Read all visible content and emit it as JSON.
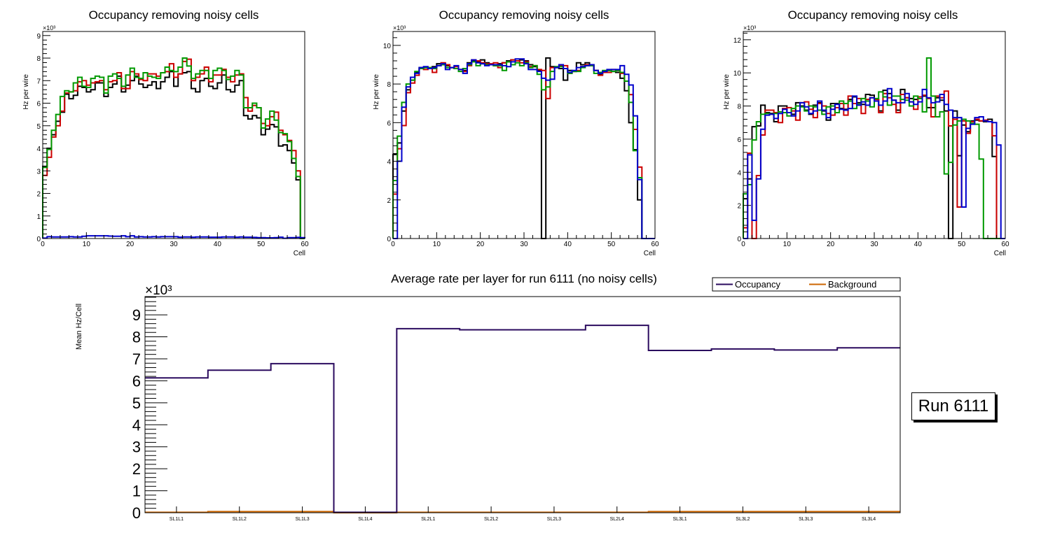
{
  "chart_data": [
    {
      "type": "line",
      "subtype": "step-histogram",
      "title": "Occupancy removing noisy cells",
      "xlabel": "Cell",
      "ylabel": "Hz per wire",
      "y_multiplier_label": "×10³",
      "xlim": [
        0,
        60
      ],
      "ylim": [
        0,
        9.18
      ],
      "xticks": [
        0,
        10,
        20,
        30,
        40,
        50,
        60
      ],
      "yticks": [
        0,
        1,
        2,
        3,
        4,
        5,
        6,
        7,
        8,
        9
      ],
      "grid": false,
      "series": [
        {
          "name": "layer-black",
          "color": "#000000",
          "values": [
            3.2,
            4.0,
            4.6,
            5.2,
            5.6,
            6.4,
            6.2,
            6.35,
            6.75,
            6.7,
            6.5,
            6.6,
            6.9,
            6.9,
            6.3,
            6.7,
            6.85,
            7.2,
            6.5,
            6.8,
            7.0,
            7.2,
            6.85,
            6.7,
            6.8,
            6.95,
            6.65,
            6.95,
            7.15,
            7.4,
            6.75,
            7.3,
            7.35,
            7.4,
            6.65,
            6.5,
            7.0,
            7.1,
            6.75,
            6.65,
            6.9,
            7.25,
            6.6,
            6.5,
            6.8,
            7.0,
            5.45,
            5.3,
            5.45,
            5.35,
            4.6,
            4.85,
            5.05,
            4.95,
            4.1,
            4.15,
            3.9,
            3.35,
            2.6,
            0
          ]
        },
        {
          "name": "layer-red",
          "color": "#cc0000",
          "values": [
            2.8,
            3.6,
            4.5,
            5.0,
            5.65,
            6.45,
            6.5,
            6.55,
            6.95,
            7.0,
            6.8,
            6.9,
            6.95,
            7.0,
            6.6,
            6.95,
            7.0,
            7.35,
            6.65,
            6.65,
            7.4,
            7.3,
            7.05,
            7.0,
            7.3,
            7.3,
            7.2,
            7.35,
            7.4,
            7.75,
            7.15,
            7.3,
            7.85,
            7.95,
            7.0,
            7.15,
            7.3,
            7.6,
            6.95,
            7.25,
            7.25,
            7.5,
            7.15,
            6.95,
            7.25,
            7.3,
            6.25,
            5.65,
            5.9,
            5.8,
            5.1,
            5.0,
            5.4,
            5.6,
            4.8,
            4.6,
            4.35,
            3.9,
            3.0,
            0
          ]
        },
        {
          "name": "layer-green",
          "color": "#009900",
          "values": [
            3.15,
            3.95,
            4.8,
            5.5,
            6.3,
            6.55,
            6.5,
            6.9,
            7.15,
            6.75,
            6.7,
            7.1,
            7.2,
            7.15,
            6.45,
            7.2,
            7.3,
            7.1,
            6.75,
            7.25,
            7.55,
            7.15,
            7.1,
            7.35,
            7.2,
            7.15,
            7.1,
            7.35,
            7.6,
            7.45,
            7.4,
            7.6,
            8.0,
            7.65,
            7.1,
            7.3,
            7.45,
            7.45,
            7.1,
            7.45,
            7.55,
            7.45,
            7.05,
            7.2,
            7.45,
            7.25,
            5.8,
            5.8,
            6.0,
            5.8,
            4.9,
            5.3,
            5.65,
            5.25,
            4.7,
            4.65,
            4.3,
            3.55,
            2.75,
            0
          ]
        },
        {
          "name": "layer-blue",
          "color": "#0000cc",
          "values": [
            0.02,
            0.08,
            0.07,
            0.07,
            0.07,
            0.07,
            0.08,
            0.07,
            0.07,
            0.1,
            0.12,
            0.12,
            0.12,
            0.12,
            0.12,
            0.11,
            0.1,
            0.1,
            0.12,
            0.08,
            0.12,
            0.07,
            0.08,
            0.07,
            0.07,
            0.08,
            0.07,
            0.08,
            0.08,
            0.08,
            0.08,
            0.06,
            0.07,
            0.07,
            0.06,
            0.07,
            0.07,
            0.07,
            0.06,
            0.06,
            0.06,
            0.07,
            0.07,
            0.07,
            0.06,
            0.07,
            0.06,
            0.06,
            0.05,
            0.04,
            0.04,
            0.03,
            0.03,
            0.04,
            0.06,
            0.01,
            0.04,
            0.04,
            0.05,
            0.04
          ]
        }
      ]
    },
    {
      "type": "line",
      "subtype": "step-histogram",
      "title": "Occupancy removing noisy cells",
      "xlabel": "Cell",
      "ylabel": "Hz per wire",
      "y_multiplier_label": "×10³",
      "xlim": [
        0,
        60
      ],
      "ylim": [
        0,
        10.72
      ],
      "xticks": [
        0,
        10,
        20,
        30,
        40,
        50,
        60
      ],
      "yticks": [
        0,
        2,
        4,
        6,
        8,
        10
      ],
      "grid": false,
      "series": [
        {
          "name": "layer-black",
          "color": "#000000",
          "values": [
            4.35,
            4.95,
            6.6,
            7.7,
            8.2,
            8.6,
            8.85,
            8.85,
            8.8,
            8.9,
            9.05,
            9.05,
            8.95,
            8.85,
            8.8,
            8.75,
            8.7,
            9.1,
            9.2,
            9.15,
            9.25,
            9.1,
            9.0,
            8.95,
            9.05,
            9.1,
            9.2,
            9.25,
            9.2,
            9.25,
            9.2,
            9.0,
            8.9,
            8.7,
            0,
            9.35,
            8.9,
            8.85,
            8.8,
            8.2,
            8.7,
            8.65,
            9.1,
            9.0,
            9.1,
            9.0,
            8.7,
            8.5,
            8.65,
            8.7,
            8.65,
            8.6,
            8.3,
            7.65,
            6.0,
            4.6,
            2.0,
            0,
            0,
            0
          ]
        },
        {
          "name": "layer-red",
          "color": "#cc0000",
          "values": [
            2.3,
            4.65,
            5.85,
            7.55,
            8.05,
            8.45,
            8.8,
            8.75,
            8.85,
            8.6,
            8.95,
            9.1,
            9.0,
            8.85,
            8.9,
            8.75,
            8.65,
            8.95,
            9.25,
            9.2,
            9.1,
            9.05,
            9.05,
            9.1,
            8.85,
            9.1,
            9.15,
            9.25,
            9.2,
            9.1,
            9.15,
            8.9,
            8.95,
            8.75,
            8.7,
            7.25,
            8.85,
            8.85,
            8.95,
            8.95,
            8.55,
            8.65,
            8.7,
            8.9,
            9.0,
            8.95,
            8.7,
            8.45,
            8.6,
            8.6,
            8.75,
            8.7,
            8.55,
            8.15,
            7.45,
            5.65,
            3.7,
            0,
            0,
            0
          ]
        },
        {
          "name": "layer-green",
          "color": "#009900",
          "values": [
            3.0,
            5.3,
            7.05,
            8.0,
            8.2,
            8.65,
            8.8,
            8.85,
            8.85,
            8.8,
            8.95,
            9.0,
            8.85,
            8.85,
            8.8,
            8.65,
            8.8,
            9.0,
            9.15,
            8.95,
            9.05,
            9.0,
            9.0,
            8.95,
            8.95,
            8.7,
            9.15,
            9.0,
            9.1,
            8.95,
            9.1,
            8.85,
            8.95,
            8.5,
            7.7,
            7.85,
            8.65,
            8.9,
            8.9,
            8.8,
            8.55,
            8.65,
            8.65,
            8.85,
            8.95,
            8.95,
            8.55,
            8.6,
            8.7,
            8.7,
            8.65,
            8.7,
            8.6,
            8.15,
            7.05,
            4.55,
            3.15,
            0,
            0,
            0
          ]
        },
        {
          "name": "layer-blue",
          "color": "#0000cc",
          "values": [
            0,
            4.0,
            6.8,
            7.85,
            8.35,
            8.55,
            8.85,
            8.9,
            8.8,
            8.85,
            8.95,
            9.05,
            8.75,
            8.85,
            8.95,
            8.75,
            8.55,
            9.05,
            9.25,
            9.1,
            9.05,
            8.95,
            9.0,
            9.0,
            9.0,
            8.95,
            8.9,
            9.15,
            9.3,
            9.3,
            9.05,
            8.75,
            8.75,
            8.65,
            8.3,
            8.2,
            8.25,
            8.85,
            9.0,
            8.8,
            8.6,
            8.7,
            8.85,
            8.9,
            8.95,
            9.0,
            8.7,
            8.55,
            8.65,
            8.75,
            8.75,
            8.75,
            8.95,
            8.5,
            7.95,
            6.35,
            3.05,
            0,
            0,
            0
          ]
        }
      ]
    },
    {
      "type": "line",
      "subtype": "step-histogram",
      "title": "Occupancy removing noisy cells",
      "xlabel": "Cell",
      "ylabel": "Hz per wire",
      "y_multiplier_label": "×10³",
      "xlim": [
        0,
        60
      ],
      "ylim": [
        0,
        12.5
      ],
      "xticks": [
        0,
        10,
        20,
        30,
        40,
        50,
        60
      ],
      "yticks": [
        0,
        2,
        4,
        6,
        8,
        10,
        12
      ],
      "grid": false,
      "series": [
        {
          "name": "layer-black",
          "color": "#000000",
          "values": [
            2.4,
            3.6,
            6.75,
            6.8,
            8.05,
            7.6,
            7.55,
            7.05,
            8.0,
            8.0,
            7.6,
            7.5,
            8.2,
            8.0,
            7.75,
            7.5,
            8.05,
            8.2,
            7.7,
            7.15,
            8.15,
            8.15,
            7.85,
            7.8,
            8.4,
            8.55,
            8.2,
            8.1,
            8.7,
            8.65,
            8.4,
            7.7,
            8.95,
            8.75,
            8.35,
            7.75,
            9.0,
            8.5,
            8.45,
            8.4,
            8.55,
            8.6,
            7.9,
            7.9,
            8.5,
            8.35,
            7.7,
            0,
            7.7,
            5.0,
            6.85,
            6.45,
            7.1,
            7.15,
            7.1,
            7.05,
            7.2,
            4.95,
            0,
            0
          ]
        },
        {
          "name": "layer-red",
          "color": "#cc0000",
          "values": [
            0.65,
            5.15,
            0,
            3.8,
            6.25,
            7.75,
            7.75,
            7.6,
            7.0,
            7.85,
            7.9,
            7.7,
            7.15,
            8.2,
            8.25,
            7.8,
            7.3,
            8.15,
            8.0,
            7.55,
            7.45,
            7.9,
            8.15,
            7.45,
            8.6,
            8.15,
            8.45,
            7.55,
            8.4,
            8.5,
            8.4,
            7.6,
            8.75,
            8.5,
            8.1,
            7.6,
            8.7,
            8.5,
            8.25,
            7.8,
            8.55,
            8.65,
            8.45,
            7.35,
            8.6,
            8.5,
            8.9,
            6.8,
            7.2,
            1.9,
            7.1,
            6.35,
            7.05,
            7.2,
            7.1,
            7.15,
            7.05,
            6.2,
            0,
            0
          ]
        },
        {
          "name": "layer-green",
          "color": "#009900",
          "values": [
            2.7,
            3.25,
            5.95,
            7.05,
            7.5,
            7.55,
            7.5,
            7.55,
            7.65,
            7.6,
            7.4,
            7.85,
            8.0,
            7.95,
            7.7,
            8.0,
            7.95,
            7.75,
            7.5,
            7.95,
            8.0,
            7.6,
            8.3,
            8.15,
            8.3,
            7.85,
            8.1,
            8.45,
            8.3,
            7.95,
            8.45,
            8.85,
            8.55,
            8.05,
            8.6,
            8.6,
            8.4,
            8.35,
            8.0,
            8.6,
            8.45,
            7.65,
            10.9,
            8.6,
            7.35,
            7.65,
            3.9,
            4.6,
            6.85,
            7.1,
            7.2,
            7.1,
            6.95,
            6.9,
            4.8,
            0,
            0,
            0,
            0,
            0
          ]
        },
        {
          "name": "layer-blue",
          "color": "#0000cc",
          "values": [
            0,
            5.05,
            1.1,
            3.6,
            6.6,
            7.45,
            7.5,
            7.25,
            7.55,
            7.8,
            7.6,
            7.4,
            7.7,
            8.2,
            7.95,
            7.55,
            7.7,
            8.3,
            7.75,
            7.3,
            7.8,
            8.1,
            7.8,
            7.75,
            7.85,
            8.6,
            8.05,
            8.25,
            8.05,
            8.5,
            8.3,
            8.05,
            8.3,
            9.05,
            8.35,
            8.2,
            8.2,
            8.75,
            8.25,
            8.1,
            8.25,
            9.0,
            8.5,
            8.2,
            8.25,
            8.7,
            8.1,
            7.75,
            7.3,
            7.3,
            1.9,
            6.65,
            6.9,
            7.3,
            7.35,
            7.1,
            7.05,
            7.0,
            5.65,
            0
          ]
        }
      ]
    },
    {
      "type": "line",
      "subtype": "step-histogram",
      "title": "Average rate per layer for run 6111 (no noisy cells)",
      "xlabel": "",
      "ylabel": "Mean Hz/Cell",
      "y_multiplier_label": "×10³",
      "ylim": [
        0,
        9.83
      ],
      "yticks": [
        0,
        1,
        2,
        3,
        4,
        5,
        6,
        7,
        8,
        9
      ],
      "categories": [
        "SL1L1",
        "SL1L2",
        "SL1L3",
        "SL1L4",
        "SL2L1",
        "SL2L2",
        "SL2L3",
        "SL2L4",
        "SL3L1",
        "SL3L2",
        "SL3L3",
        "SL3L4"
      ],
      "grid": false,
      "legend": "top-right",
      "series": [
        {
          "name": "Occupancy",
          "color": "#2a0a5e",
          "values": [
            6.13,
            6.48,
            6.78,
            0.02,
            8.37,
            8.32,
            8.32,
            8.52,
            7.38,
            7.45,
            7.4,
            7.5
          ]
        },
        {
          "name": "Background",
          "color": "#cc6600",
          "values": [
            0.02,
            0.05,
            0.05,
            0.0,
            0.02,
            0.02,
            0.02,
            0.02,
            0.05,
            0.05,
            0.05,
            0.05
          ]
        }
      ]
    }
  ],
  "run_label": "Run 6111"
}
